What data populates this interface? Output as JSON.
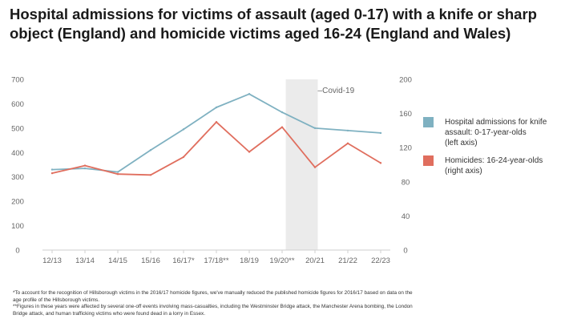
{
  "title": "Hospital admissions for victims of assault (aged 0-17) with a knife or sharp object (England) and homicide victims aged 16-24 (England and Wales)",
  "chart_data": {
    "type": "line",
    "categories": [
      "12/13",
      "13/14",
      "14/15",
      "15/16",
      "16/17*",
      "17/18**",
      "18/19",
      "19/20**",
      "20/21",
      "21/22",
      "22/23"
    ],
    "series": [
      {
        "name": "Hospital admissions for knife assault: 0-17-year-olds (left axis)",
        "legend_lines": [
          "Hospital admissions for knife",
          "assault: 0-17-year-olds",
          "(left axis)"
        ],
        "axis": "left",
        "color": "#7fb1c1",
        "values": [
          330,
          335,
          320,
          410,
          495,
          585,
          640,
          565,
          500,
          490,
          480
        ]
      },
      {
        "name": "Homicides: 16-24-year-olds (right axis)",
        "legend_lines": [
          "Homicides: 16-24-year-olds",
          "(right axis)"
        ],
        "axis": "right",
        "color": "#e06e5e",
        "values": [
          90,
          99,
          89,
          88,
          109,
          150,
          115,
          144,
          97,
          125,
          102
        ]
      }
    ],
    "y_left": {
      "min": 0,
      "max": 700,
      "ticks": [
        "0",
        "100",
        "200",
        "300",
        "400",
        "500",
        "600",
        "700"
      ]
    },
    "y_right": {
      "min": 0,
      "max": 200,
      "ticks": [
        "0",
        "40",
        "80",
        "120",
        "160",
        "200"
      ]
    },
    "annotations": [
      {
        "label": "Covid-19",
        "x_category": "20/21",
        "shade_color": "#ebebeb"
      }
    ],
    "legend_position": "right",
    "grid": false
  },
  "footnotes": [
    "*To account for the recognition of Hillsborough victims in the 2016/17 homicide figures, we've manually reduced the published homicide figures for 2016/17 based on data on the age profile of the Hillsborough victims.",
    "**Figures in these years were affected by several one-off events involving mass-casualties, including the Westminster Bridge attack, the Manchester Arena bombing, the London Bridge attack, and human trafficking victims who were found dead in a lorry in Essex."
  ]
}
